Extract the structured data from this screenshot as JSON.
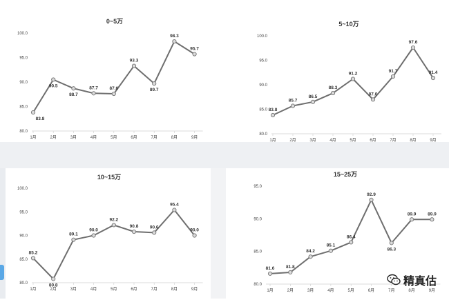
{
  "months": [
    "1月",
    "2月",
    "3月",
    "4月",
    "5月",
    "6月",
    "7月",
    "8月",
    "9月"
  ],
  "colors": {
    "line": "#6e6e6e",
    "marker_fill": "#dcdcdc",
    "marker_stroke": "#7a7a7a",
    "axis": "#cfcfcf"
  },
  "watermark": {
    "text": "精真估",
    "icon": "wechat-icon"
  },
  "chart_data": [
    {
      "type": "line",
      "title": "0~5万",
      "categories": [
        "1月",
        "2月",
        "3月",
        "4月",
        "5月",
        "6月",
        "7月",
        "8月",
        "9月"
      ],
      "values": [
        83.8,
        90.5,
        88.7,
        87.7,
        87.6,
        93.3,
        89.7,
        98.3,
        95.7
      ],
      "labels": [
        "83.8",
        "90.5",
        "88.7",
        "87.7",
        "87.6",
        "93.3",
        "89.7",
        "98.3",
        "95.7"
      ],
      "yticks": [
        "80.0",
        "85.0",
        "90.0",
        "95.0",
        "100.0"
      ],
      "ylim": [
        80,
        100
      ]
    },
    {
      "type": "line",
      "title": "5~10万",
      "categories": [
        "1月",
        "2月",
        "3月",
        "4月",
        "5月",
        "6月",
        "7月",
        "8月",
        "9月"
      ],
      "values": [
        83.8,
        85.7,
        86.5,
        88.3,
        91.2,
        87.0,
        91.7,
        97.6,
        91.4
      ],
      "labels": [
        "83.8",
        "85.7",
        "86.5",
        "88.3",
        "91.2",
        "87.0",
        "91.7",
        "97.6",
        "91.4"
      ],
      "yticks": [
        "80.0",
        "85.0",
        "90.0",
        "95.0",
        "100.0"
      ],
      "ylim": [
        80,
        100
      ]
    },
    {
      "type": "line",
      "title": "10~15万",
      "categories": [
        "1月",
        "2月",
        "3月",
        "4月",
        "5月",
        "6月",
        "7月",
        "8月",
        "9月"
      ],
      "values": [
        85.2,
        80.8,
        89.1,
        90.0,
        92.2,
        90.8,
        90.6,
        95.4,
        90.0
      ],
      "labels": [
        "85.2",
        "80.8",
        "89.1",
        "90.0",
        "92.2",
        "90.8",
        "90.6",
        "95.4",
        "90.0"
      ],
      "yticks": [
        "80.0",
        "85.0",
        "90.0",
        "95.0",
        "100.0"
      ],
      "ylim": [
        80,
        100
      ]
    },
    {
      "type": "line",
      "title": "15~25万",
      "categories": [
        "1月",
        "2月",
        "3月",
        "4月",
        "5月",
        "6月",
        "7月",
        "8月",
        "9月"
      ],
      "values": [
        81.6,
        81.8,
        84.2,
        85.1,
        86.4,
        92.9,
        86.3,
        89.9,
        89.9
      ],
      "labels": [
        "81.6",
        "81.8",
        "84.2",
        "85.1",
        "86.4",
        "92.9",
        "86.3",
        "89.9",
        "89.9"
      ],
      "yticks": [
        "80.0",
        "85.0",
        "90.0",
        "95.0"
      ],
      "ylim": [
        80,
        95
      ]
    }
  ]
}
